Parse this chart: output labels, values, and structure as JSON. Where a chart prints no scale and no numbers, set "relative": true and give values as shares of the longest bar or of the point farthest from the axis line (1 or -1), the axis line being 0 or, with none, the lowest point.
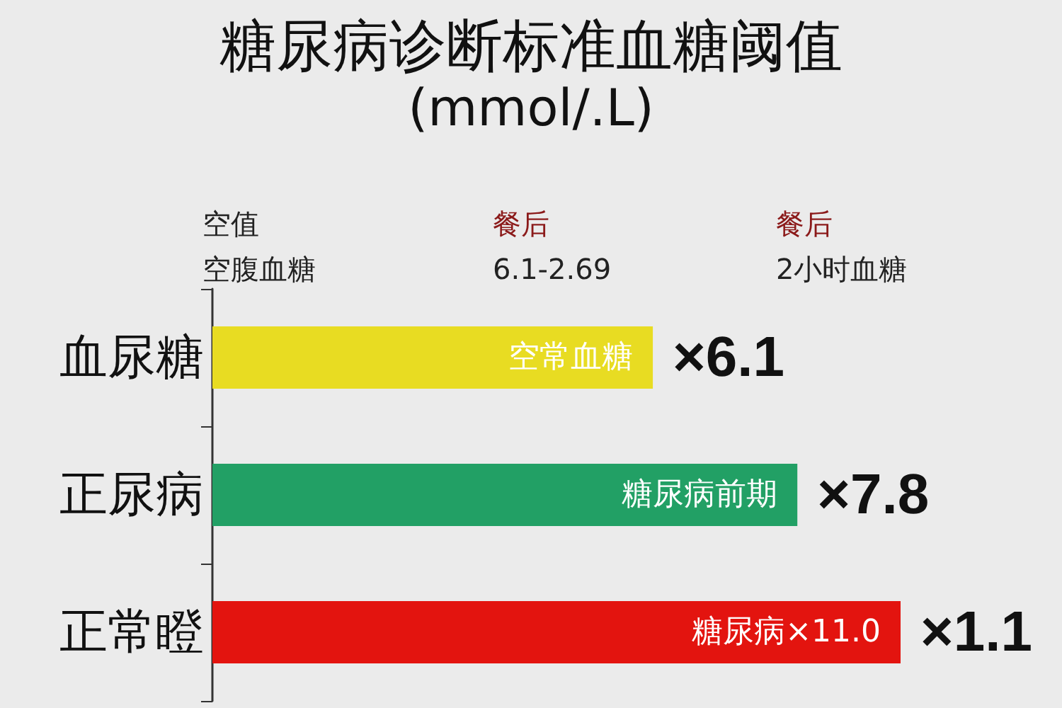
{
  "chart_data": {
    "type": "bar",
    "orientation": "horizontal",
    "relative": true,
    "title": "糖尿病诊断标准血糖阈值",
    "subtitle": "(mmol/.L)",
    "categories": [
      "血尿糖",
      "正尿病",
      "正常瞪"
    ],
    "values": [
      0.64,
      0.85,
      1
    ],
    "colors": [
      "#e8dc22",
      "#22a065",
      "#e3140f"
    ],
    "annotations": [
      "空值",
      "空腹血糖",
      "餐后",
      "6.1-2.69",
      "餐后",
      "2小时血糖",
      "空常血糖",
      "糖尿病前期",
      "糖尿病×11.0",
      "×6.1",
      "×7.8",
      "×1.1"
    ],
    "grid": false
  }
}
